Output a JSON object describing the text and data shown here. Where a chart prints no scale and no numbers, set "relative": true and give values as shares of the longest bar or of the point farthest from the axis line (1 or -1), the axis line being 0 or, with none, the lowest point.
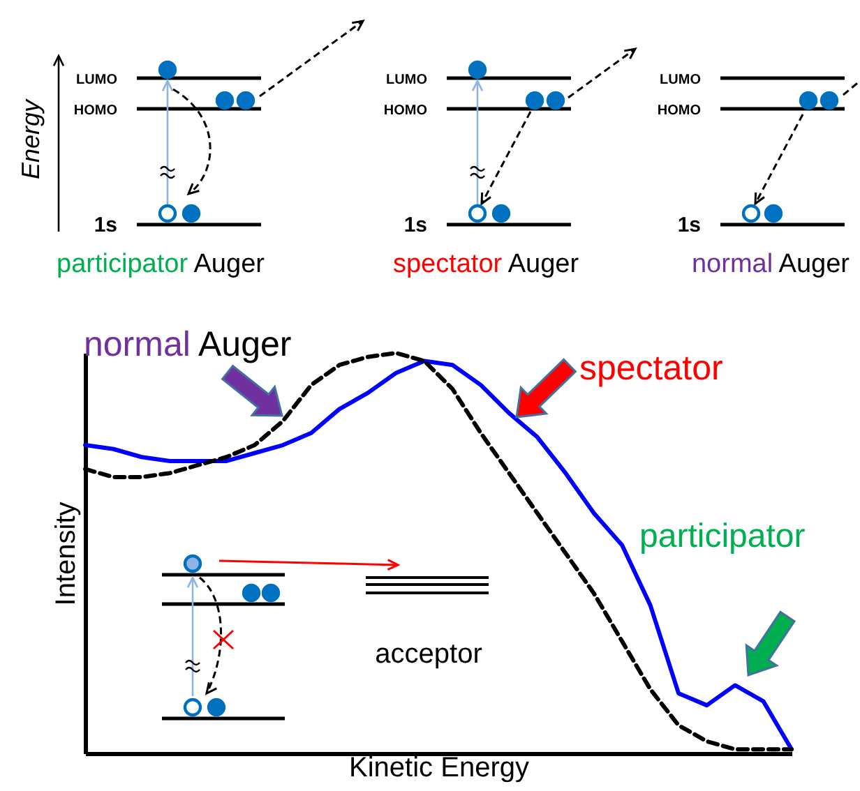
{
  "chart_data": {
    "type": "line",
    "relative": true,
    "xlabel": "Kinetic Energy",
    "ylabel": "Intensity",
    "categories": [
      null,
      null,
      null,
      null,
      null,
      null,
      null,
      null,
      null,
      null,
      null,
      null,
      null,
      null,
      null,
      null,
      null,
      null,
      null,
      null,
      null,
      null,
      null,
      null,
      null,
      null
    ],
    "series": [
      {
        "color": "#0000ff",
        "line_style": "solid",
        "values": [
          0.77,
          0.76,
          0.74,
          0.73,
          0.73,
          0.73,
          0.75,
          0.77,
          0.8,
          0.86,
          0.9,
          0.95,
          0.98,
          0.97,
          0.92,
          0.85,
          0.79,
          0.7,
          0.6,
          0.52,
          0.37,
          0.15,
          0.12,
          0.17,
          0.13,
          0.01
        ]
      },
      {
        "color": "#000000",
        "line_style": "dashed",
        "values": [
          0.71,
          0.69,
          0.69,
          0.7,
          0.72,
          0.74,
          0.77,
          0.83,
          0.92,
          0.97,
          0.99,
          1,
          0.98,
          0.91,
          0.8,
          0.7,
          0.6,
          0.5,
          0.4,
          0.28,
          0.16,
          0.07,
          0.03,
          0.01,
          0.01,
          0.01
        ]
      }
    ],
    "annotations": [
      "Energy",
      "LUMO",
      "HOMO",
      "1s",
      "participator Auger",
      "LUMO",
      "HOMO",
      "1s",
      "spectator Auger",
      "LUMO",
      "HOMO",
      "1s",
      "normal Auger",
      "normal Auger",
      "spectator",
      "participator",
      "acceptor"
    ]
  }
}
